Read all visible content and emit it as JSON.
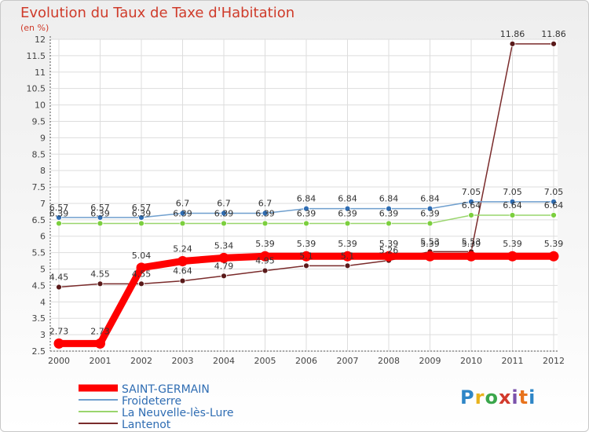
{
  "title": "Evolution du Taux de Taxe d'Habitation",
  "unit_label": "(en %)",
  "logo_text": "Proxiti",
  "chart_data": {
    "type": "line",
    "title": "Evolution du Taux de Taxe d'Habitation",
    "subtitle": "(en %)",
    "categories": [
      "2000",
      "2001",
      "2002",
      "2003",
      "2004",
      "2005",
      "2006",
      "2007",
      "2008",
      "2009",
      "2010",
      "2011",
      "2012"
    ],
    "y_ticks": [
      "2.5",
      "3",
      "3.5",
      "4",
      "4.5",
      "5",
      "5.5",
      "6",
      "6.5",
      "7",
      "7.5",
      "8",
      "8.5",
      "9",
      "9.5",
      "10",
      "10.5",
      "11",
      "11.5",
      "12"
    ],
    "ylim": [
      2.5,
      12
    ],
    "grid": true,
    "legend_position": "bottom-left",
    "series": [
      {
        "name": "SAINT-GERMAIN",
        "color": "#ff0000",
        "values": [
          2.73,
          2.73,
          5.04,
          5.24,
          5.34,
          5.39,
          5.39,
          5.39,
          5.39,
          5.39,
          5.39,
          5.39,
          5.39
        ]
      },
      {
        "name": "Froideterre",
        "color": "#6f9fce",
        "values": [
          6.57,
          6.57,
          6.57,
          6.7,
          6.7,
          6.7,
          6.84,
          6.84,
          6.84,
          6.84,
          7.05,
          7.05,
          7.05
        ]
      },
      {
        "name": "La Neuvelle-lès-Lure",
        "color": "#99d56c",
        "values": [
          6.39,
          6.39,
          6.39,
          6.39,
          6.39,
          6.39,
          6.39,
          6.39,
          6.39,
          6.39,
          6.64,
          6.64,
          6.64
        ]
      },
      {
        "name": "Lantenot",
        "color": "#7a2b2b",
        "values": [
          4.45,
          4.55,
          4.55,
          4.64,
          4.79,
          4.95,
          5.1,
          5.1,
          5.26,
          5.53,
          5.53,
          11.86,
          11.86
        ]
      }
    ]
  }
}
